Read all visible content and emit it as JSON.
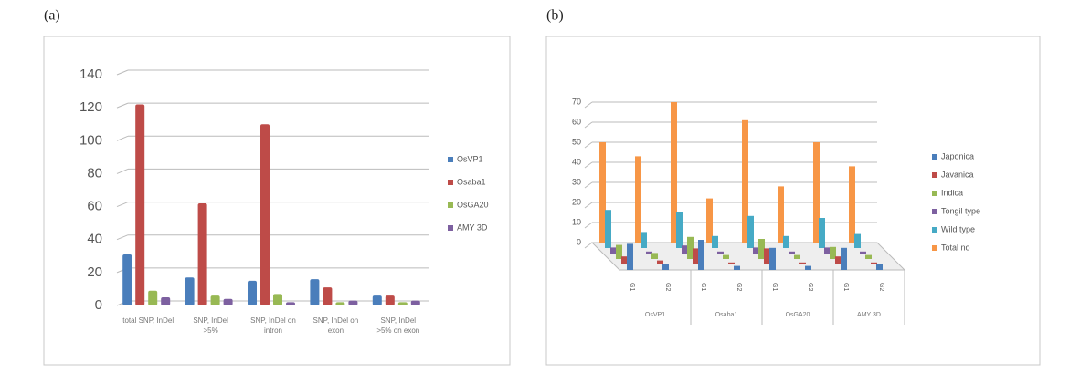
{
  "chart_data": [
    {
      "type": "bar",
      "title": "(a)",
      "categories": [
        "total SNP, InDel",
        "SNP, InDel >5%",
        "SNP, InDel on intron",
        "SNP, InDel on exon",
        "SNP, InDel >5% on exon"
      ],
      "series": [
        {
          "name": "OsVP1",
          "color": "#4a7ebb",
          "values": [
            31,
            17,
            15,
            16,
            6
          ]
        },
        {
          "name": "Osaba1",
          "color": "#be4b48",
          "values": [
            122,
            62,
            110,
            11,
            6
          ]
        },
        {
          "name": "OsGA20",
          "color": "#98b954",
          "values": [
            9,
            6,
            7,
            2,
            2
          ]
        },
        {
          "name": "AMY 3D",
          "color": "#7d60a0",
          "values": [
            5,
            4,
            2,
            3,
            3
          ]
        }
      ],
      "ylim": [
        0,
        140
      ],
      "yticks": [
        0,
        20,
        40,
        60,
        80,
        100,
        120,
        140
      ],
      "grid": true
    },
    {
      "type": "bar3d",
      "title": "(b)",
      "groups": [
        "OsVP1",
        "Osaba1",
        "OsGA20",
        "AMY 3D"
      ],
      "categories": [
        "G1",
        "G2",
        "G1",
        "G2",
        "G1",
        "G2",
        "G1",
        "G2"
      ],
      "series": [
        {
          "name": "Japonica",
          "color": "#4a7ebb",
          "values": [
            13,
            3,
            15,
            2,
            11,
            2,
            11,
            3
          ]
        },
        {
          "name": "Javanica",
          "color": "#be4b48",
          "values": [
            4,
            2,
            8,
            1,
            8,
            1,
            4,
            1
          ]
        },
        {
          "name": "Indica",
          "color": "#98b954",
          "values": [
            7,
            3,
            11,
            2,
            10,
            2,
            6,
            2
          ]
        },
        {
          "name": "Tongil type",
          "color": "#7d60a0",
          "values": [
            3,
            1,
            4,
            1,
            3,
            1,
            3,
            1
          ]
        },
        {
          "name": "Wild type",
          "color": "#46aac5",
          "values": [
            19,
            8,
            18,
            6,
            16,
            6,
            15,
            7
          ]
        },
        {
          "name": "Total no",
          "color": "#f79646",
          "values": [
            50,
            43,
            70,
            22,
            61,
            28,
            50,
            38
          ]
        }
      ],
      "ylim": [
        0,
        70
      ],
      "yticks": [
        0,
        10,
        20,
        30,
        40,
        50,
        60,
        70
      ],
      "grid": true
    }
  ]
}
